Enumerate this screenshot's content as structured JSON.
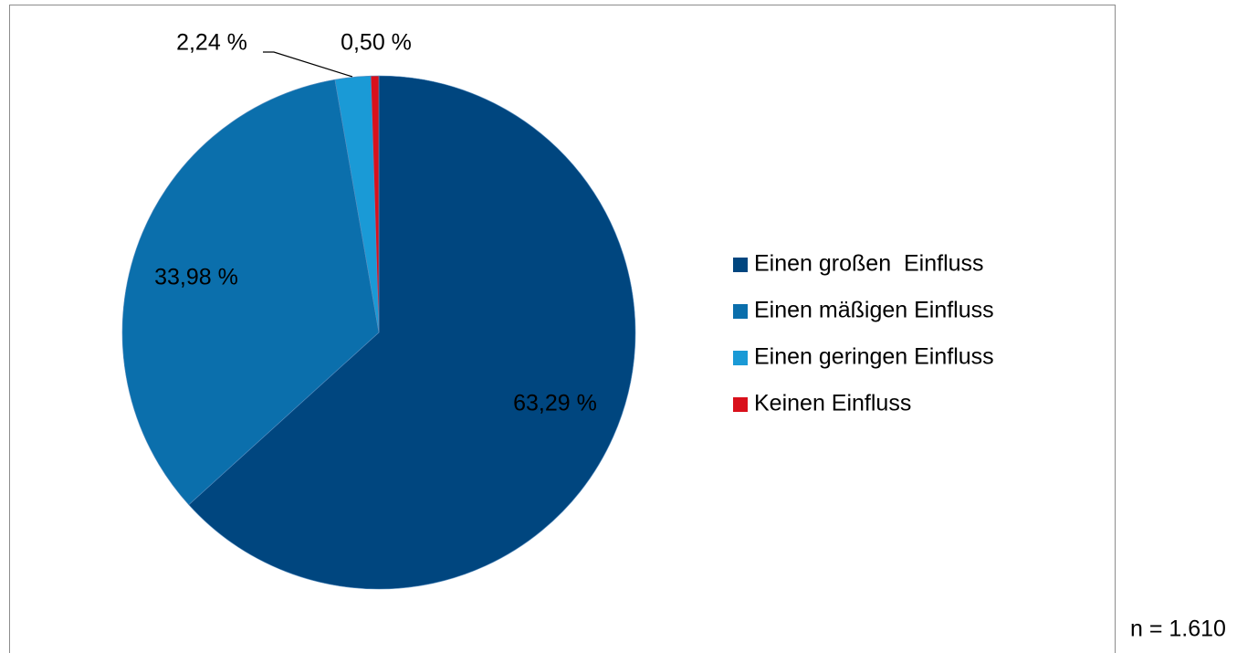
{
  "chart_data": {
    "type": "pie",
    "categories": [
      "Einen großen  Einfluss",
      "Einen mäßigen Einfluss",
      "Einen geringen Einfluss",
      "Keinen Einfluss"
    ],
    "values": [
      63.29,
      33.98,
      2.24,
      0.5
    ],
    "value_labels": [
      "63,29 %",
      "33,98 %",
      "2,24 %",
      "0,50 %"
    ],
    "colors": [
      "#00467f",
      "#0b6fac",
      "#1a9ad6",
      "#d9101b"
    ],
    "legend": "right",
    "note": "n = 1.610"
  }
}
